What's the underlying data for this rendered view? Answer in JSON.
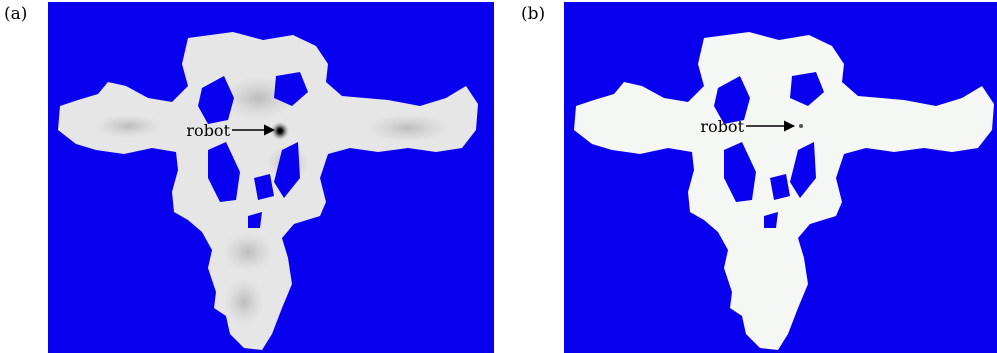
{
  "panels": [
    {
      "label": "(a)",
      "robot_label": "robot",
      "style": "probability-shaded"
    },
    {
      "label": "(b)",
      "robot_label": "robot",
      "style": "converged"
    }
  ],
  "colors": {
    "obstacle": "#0a00f0",
    "free_space_a": "#e6e6e6",
    "free_space_b": "#f4f7f4",
    "robot": "#000000"
  }
}
